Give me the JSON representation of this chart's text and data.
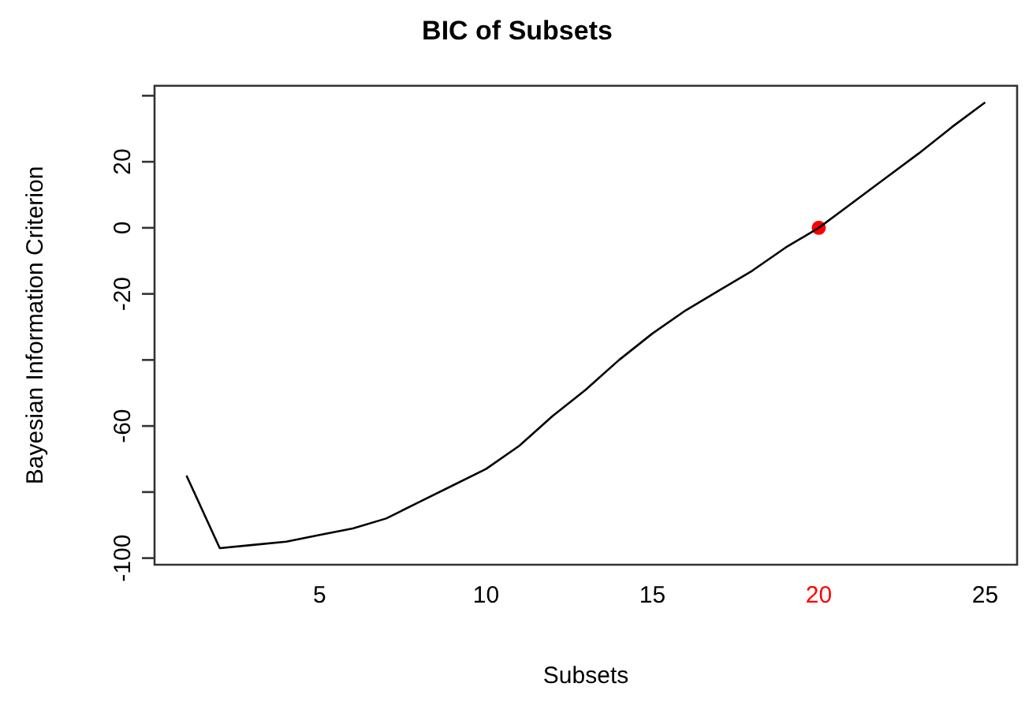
{
  "chart_data": {
    "type": "line",
    "title": "BIC of Subsets",
    "xlabel": "Subsets",
    "ylabel": "Bayesian Information Criterion",
    "xlim": [
      0.04,
      25.96
    ],
    "xticks": [
      5,
      10,
      15,
      20,
      25
    ],
    "ylim": [
      -102,
      43
    ],
    "yticks": [
      {
        "value": -100,
        "label": "-100"
      },
      {
        "value": -80,
        "label": null
      },
      -60,
      {
        "value": -40,
        "label": null
      },
      -20,
      0,
      20,
      {
        "value": 40,
        "label": null
      }
    ],
    "grid": false,
    "legend": false,
    "marker": "none",
    "line_style": "solid",
    "series": [
      {
        "color": "#000000",
        "x": [
          1,
          2,
          3,
          4,
          5,
          6,
          7,
          8,
          9,
          10,
          11,
          12,
          13,
          14,
          15,
          16,
          17,
          18,
          19,
          20,
          21,
          22,
          23,
          24,
          25
        ],
        "values": [
          -75,
          -97,
          -96,
          -95,
          -93,
          -91,
          -88,
          -83,
          -78,
          -73,
          -66,
          -57,
          -49,
          -40,
          -32,
          -25,
          -19,
          -13,
          -6,
          0,
          7.5,
          15,
          22.5,
          30.5,
          38
        ]
      },
      {
        "type": "scatter",
        "color": "#ff0000",
        "marker": "circle",
        "x": [
          20
        ],
        "values": [
          0
        ]
      }
    ]
  }
}
